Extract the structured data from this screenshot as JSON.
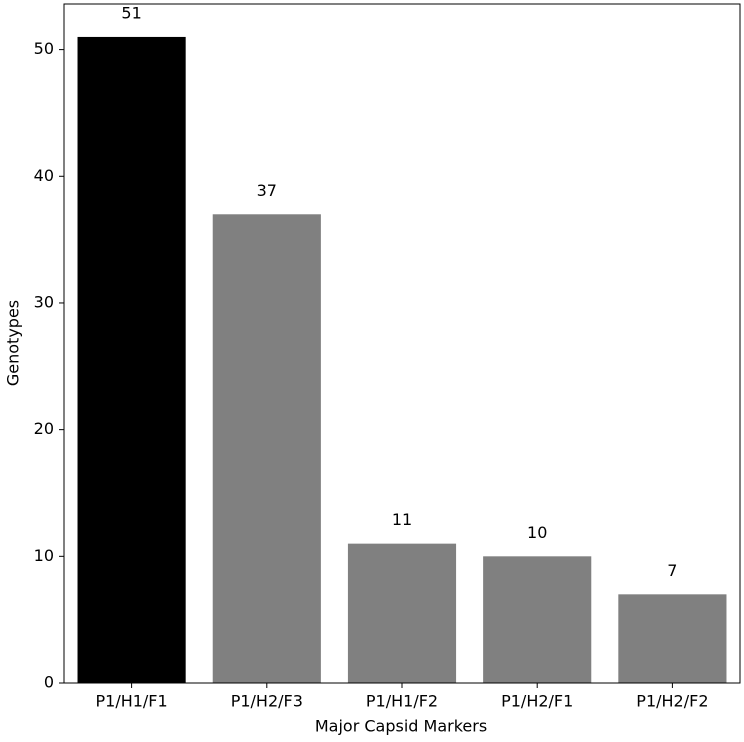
{
  "chart_data": {
    "type": "bar",
    "xlabel": "Major Capsid Markers",
    "ylabel": "Genotypes",
    "categories": [
      "P1/H1/F1",
      "P1/H2/F3",
      "P1/H1/F2",
      "P1/H2/F1",
      "P1/H2/F2"
    ],
    "values": [
      51,
      37,
      11,
      10,
      7
    ],
    "colors": [
      "#000000",
      "#808080",
      "#808080",
      "#808080",
      "#808080"
    ],
    "ylim": [
      0,
      53.6
    ],
    "yticks": [
      0,
      10,
      20,
      30,
      40,
      50
    ],
    "grid": false
  }
}
